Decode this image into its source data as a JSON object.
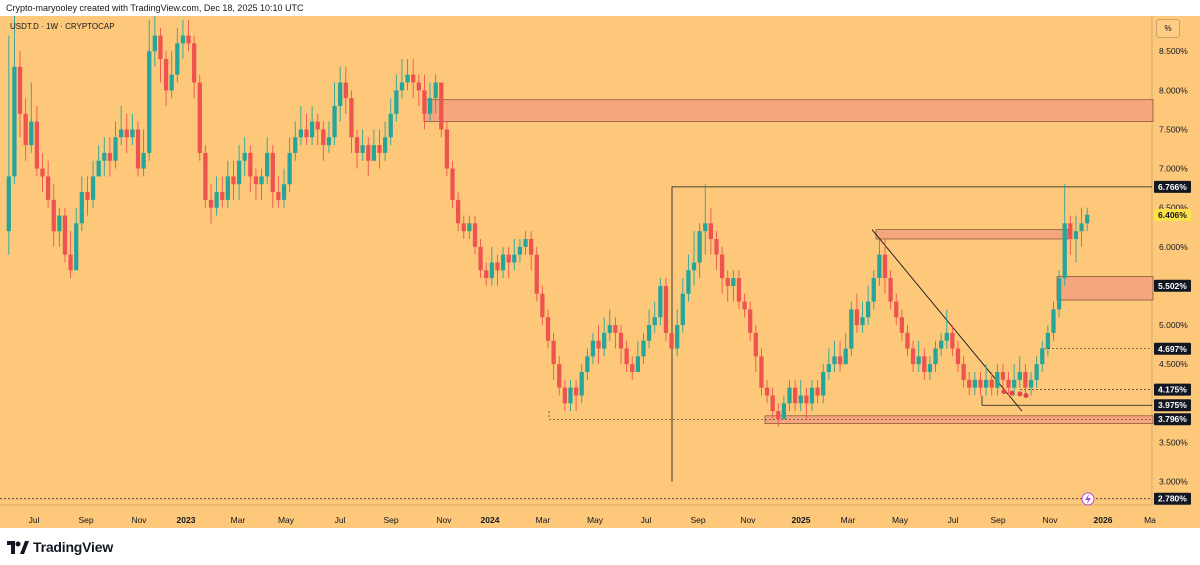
{
  "header": {
    "credit": "Crypto-maryooley created with TradingView.com, Dec 18, 2025 10:10 UTC"
  },
  "symbol_label": "USDT.D · 1W · CRYPTOCAP",
  "scale_button": "%",
  "footer": {
    "brand": "TradingView",
    "logo_icon": "tradingview-logo-icon"
  },
  "colors": {
    "background": "#fdc87a",
    "up": "#26a69a",
    "down": "#ef5350",
    "zone": "#f4a07e",
    "label_bg": "#131722"
  },
  "chart_data": {
    "type": "candlestick",
    "title": "",
    "symbol": "USDT.D",
    "interval": "1W",
    "ylim": [
      2.7,
      8.95
    ],
    "y_ticks": [
      {
        "value": 8.5,
        "label": "8.500%"
      },
      {
        "value": 8.0,
        "label": "8.000%"
      },
      {
        "value": 7.5,
        "label": "7.500%"
      },
      {
        "value": 7.0,
        "label": "7.000%"
      },
      {
        "value": 6.5,
        "label": "6.500%"
      },
      {
        "value": 6.0,
        "label": "6.000%"
      },
      {
        "value": 5.0,
        "label": "5.000%"
      },
      {
        "value": 4.5,
        "label": "4.500%"
      },
      {
        "value": 3.5,
        "label": "3.500%"
      },
      {
        "value": 3.0,
        "label": "3.000%"
      }
    ],
    "x_ticks": [
      "Jul",
      "Sep",
      "Nov",
      "2023",
      "Mar",
      "May",
      "Jul",
      "Sep",
      "Nov",
      "2024",
      "Mar",
      "May",
      "Jul",
      "Sep",
      "Nov",
      "2025",
      "Mar",
      "May",
      "Jul",
      "Sep",
      "Nov",
      "2026",
      "Ma"
    ],
    "price_labels": [
      {
        "value": 6.766,
        "label": "6.766%",
        "style": "dark"
      },
      {
        "value": 6.406,
        "label": "6.406%",
        "style": "current"
      },
      {
        "value": 5.502,
        "label": "5.502%",
        "style": "dark"
      },
      {
        "value": 4.697,
        "label": "4.697%",
        "style": "dark"
      },
      {
        "value": 4.175,
        "label": "4.175%",
        "style": "dark"
      },
      {
        "value": 3.975,
        "label": "3.975%",
        "style": "dark"
      },
      {
        "value": 3.796,
        "label": "3.796%",
        "style": "dark"
      },
      {
        "value": 2.78,
        "label": "2.780%",
        "style": "dark"
      }
    ],
    "zones": [
      {
        "from": 7.6,
        "to": 7.88,
        "start": "Oct 2023",
        "end": "right-edge"
      },
      {
        "from": 6.1,
        "to": 6.22,
        "start": "Apr 2025",
        "end": "Dec 2025"
      },
      {
        "from": 5.32,
        "to": 5.62,
        "start": "Nov 2025",
        "end": "right-edge"
      },
      {
        "from": 3.74,
        "to": 3.84,
        "start": "Dec 2024",
        "end": "right-edge"
      }
    ],
    "candles": [
      [
        6.2,
        6.9,
        8.7,
        5.9
      ],
      [
        6.9,
        8.3,
        9.0,
        6.8
      ],
      [
        8.3,
        7.7,
        8.5,
        7.4
      ],
      [
        7.7,
        7.3,
        7.9,
        7.1
      ],
      [
        7.3,
        7.6,
        8.1,
        7.2
      ],
      [
        7.6,
        7.0,
        7.8,
        6.9
      ],
      [
        7.0,
        6.9,
        7.2,
        6.7
      ],
      [
        6.9,
        6.6,
        7.1,
        6.5
      ],
      [
        6.6,
        6.2,
        6.8,
        6.0
      ],
      [
        6.2,
        6.4,
        6.5,
        6.0
      ],
      [
        6.4,
        5.9,
        6.5,
        5.8
      ],
      [
        5.9,
        5.7,
        6.2,
        5.6
      ],
      [
        5.7,
        6.3,
        6.5,
        5.7
      ],
      [
        6.3,
        6.7,
        6.9,
        6.2
      ],
      [
        6.7,
        6.6,
        6.9,
        6.4
      ],
      [
        6.6,
        6.9,
        7.1,
        6.5
      ],
      [
        6.9,
        7.1,
        7.3,
        6.9
      ],
      [
        7.1,
        7.2,
        7.4,
        6.9
      ],
      [
        7.2,
        7.1,
        7.4,
        6.9
      ],
      [
        7.1,
        7.4,
        7.6,
        7.0
      ],
      [
        7.4,
        7.5,
        7.8,
        7.3
      ],
      [
        7.5,
        7.4,
        7.7,
        7.2
      ],
      [
        7.4,
        7.5,
        7.7,
        7.3
      ],
      [
        7.5,
        7.0,
        7.6,
        6.9
      ],
      [
        7.0,
        7.2,
        7.5,
        6.9
      ],
      [
        7.2,
        8.5,
        8.9,
        7.1
      ],
      [
        8.5,
        8.7,
        9.1,
        8.3
      ],
      [
        8.7,
        8.4,
        8.8,
        8.1
      ],
      [
        8.4,
        8.0,
        8.5,
        7.8
      ],
      [
        8.0,
        8.2,
        8.5,
        7.9
      ],
      [
        8.2,
        8.6,
        8.8,
        8.1
      ],
      [
        8.6,
        8.7,
        8.9,
        8.4
      ],
      [
        8.7,
        8.6,
        8.9,
        8.5
      ],
      [
        8.6,
        8.1,
        8.7,
        7.9
      ],
      [
        8.1,
        7.2,
        8.2,
        7.1
      ],
      [
        7.2,
        6.6,
        7.3,
        6.5
      ],
      [
        6.6,
        6.5,
        6.8,
        6.3
      ],
      [
        6.5,
        6.7,
        6.9,
        6.4
      ],
      [
        6.7,
        6.6,
        6.9,
        6.5
      ],
      [
        6.6,
        6.9,
        7.1,
        6.5
      ],
      [
        6.9,
        6.8,
        7.1,
        6.6
      ],
      [
        6.8,
        7.1,
        7.3,
        6.6
      ],
      [
        7.1,
        7.2,
        7.4,
        6.9
      ],
      [
        7.2,
        6.9,
        7.3,
        6.7
      ],
      [
        6.9,
        6.8,
        7.0,
        6.6
      ],
      [
        6.8,
        6.9,
        7.0,
        6.6
      ],
      [
        6.9,
        7.2,
        7.4,
        6.8
      ],
      [
        7.2,
        6.7,
        7.3,
        6.5
      ],
      [
        6.7,
        6.6,
        6.9,
        6.5
      ],
      [
        6.6,
        6.8,
        7.0,
        6.5
      ],
      [
        6.8,
        7.2,
        7.4,
        6.7
      ],
      [
        7.2,
        7.4,
        7.6,
        7.1
      ],
      [
        7.4,
        7.5,
        7.8,
        7.3
      ],
      [
        7.5,
        7.4,
        7.7,
        7.3
      ],
      [
        7.4,
        7.6,
        7.8,
        7.3
      ],
      [
        7.6,
        7.5,
        7.7,
        7.3
      ],
      [
        7.5,
        7.3,
        7.6,
        7.1
      ],
      [
        7.3,
        7.4,
        7.6,
        7.2
      ],
      [
        7.4,
        7.8,
        8.1,
        7.3
      ],
      [
        7.8,
        8.1,
        8.3,
        7.6
      ],
      [
        8.1,
        7.9,
        8.3,
        7.7
      ],
      [
        7.9,
        7.4,
        8.0,
        7.2
      ],
      [
        7.4,
        7.2,
        7.5,
        7.0
      ],
      [
        7.2,
        7.3,
        7.5,
        7.1
      ],
      [
        7.3,
        7.1,
        7.4,
        6.9
      ],
      [
        7.1,
        7.3,
        7.5,
        7.1
      ],
      [
        7.3,
        7.2,
        7.5,
        7.0
      ],
      [
        7.2,
        7.4,
        7.6,
        7.1
      ],
      [
        7.4,
        7.7,
        7.9,
        7.3
      ],
      [
        7.7,
        8.0,
        8.2,
        7.6
      ],
      [
        8.0,
        8.1,
        8.4,
        7.9
      ],
      [
        8.1,
        8.2,
        8.4,
        8.0
      ],
      [
        8.2,
        8.1,
        8.4,
        7.9
      ],
      [
        8.1,
        8.0,
        8.2,
        7.8
      ],
      [
        8.0,
        7.7,
        8.2,
        7.5
      ],
      [
        7.7,
        7.9,
        8.1,
        7.6
      ],
      [
        7.9,
        8.1,
        8.2,
        7.7
      ],
      [
        8.1,
        7.5,
        8.1,
        7.4
      ],
      [
        7.5,
        7.0,
        7.6,
        6.9
      ],
      [
        7.0,
        6.6,
        7.1,
        6.5
      ],
      [
        6.6,
        6.3,
        6.7,
        6.2
      ],
      [
        6.3,
        6.2,
        6.4,
        6.1
      ],
      [
        6.2,
        6.3,
        6.4,
        6.1
      ],
      [
        6.3,
        6.0,
        6.4,
        5.9
      ],
      [
        6.0,
        5.7,
        6.1,
        5.6
      ],
      [
        5.7,
        5.6,
        5.8,
        5.5
      ],
      [
        5.6,
        5.8,
        6.0,
        5.5
      ],
      [
        5.8,
        5.7,
        5.9,
        5.5
      ],
      [
        5.7,
        5.9,
        6.0,
        5.6
      ],
      [
        5.9,
        5.8,
        6.0,
        5.6
      ],
      [
        5.8,
        5.9,
        6.1,
        5.7
      ],
      [
        5.9,
        6.0,
        6.1,
        5.8
      ],
      [
        6.0,
        6.1,
        6.2,
        5.9
      ],
      [
        6.1,
        5.9,
        6.2,
        5.7
      ],
      [
        5.9,
        5.4,
        6.0,
        5.3
      ],
      [
        5.4,
        5.1,
        5.5,
        5.0
      ],
      [
        5.1,
        4.8,
        5.2,
        4.7
      ],
      [
        4.8,
        4.5,
        4.9,
        4.3
      ],
      [
        4.5,
        4.2,
        4.6,
        4.1
      ],
      [
        4.2,
        4.0,
        4.3,
        3.9
      ],
      [
        4.0,
        4.2,
        4.3,
        3.9
      ],
      [
        4.2,
        4.1,
        4.3,
        3.9
      ],
      [
        4.1,
        4.4,
        4.5,
        4.0
      ],
      [
        4.4,
        4.6,
        4.7,
        4.3
      ],
      [
        4.6,
        4.8,
        4.9,
        4.5
      ],
      [
        4.8,
        4.7,
        5.0,
        4.5
      ],
      [
        4.7,
        4.9,
        5.1,
        4.6
      ],
      [
        4.9,
        5.0,
        5.2,
        4.8
      ],
      [
        5.0,
        4.9,
        5.1,
        4.7
      ],
      [
        4.9,
        4.7,
        5.0,
        4.5
      ],
      [
        4.7,
        4.5,
        4.8,
        4.4
      ],
      [
        4.5,
        4.4,
        4.6,
        4.3
      ],
      [
        4.4,
        4.6,
        4.8,
        4.4
      ],
      [
        4.6,
        4.8,
        4.9,
        4.5
      ],
      [
        4.8,
        5.0,
        5.2,
        4.7
      ],
      [
        5.0,
        5.1,
        5.3,
        4.9
      ],
      [
        5.1,
        5.5,
        5.6,
        5.0
      ],
      [
        5.5,
        4.9,
        5.6,
        4.8
      ],
      [
        4.9,
        4.7,
        5.0,
        4.6
      ],
      [
        4.7,
        5.0,
        5.2,
        4.6
      ],
      [
        5.0,
        5.4,
        5.6,
        4.9
      ],
      [
        5.4,
        5.7,
        5.9,
        5.3
      ],
      [
        5.7,
        5.8,
        6.2,
        5.5
      ],
      [
        5.8,
        6.2,
        6.3,
        5.6
      ],
      [
        6.2,
        6.3,
        6.8,
        5.9
      ],
      [
        6.3,
        6.1,
        6.5,
        5.9
      ],
      [
        6.1,
        5.9,
        6.2,
        5.7
      ],
      [
        5.9,
        5.6,
        6.0,
        5.4
      ],
      [
        5.6,
        5.5,
        5.7,
        5.3
      ],
      [
        5.5,
        5.6,
        5.7,
        5.3
      ],
      [
        5.6,
        5.3,
        5.7,
        5.2
      ],
      [
        5.3,
        5.2,
        5.4,
        5.1
      ],
      [
        5.2,
        4.9,
        5.3,
        4.8
      ],
      [
        4.9,
        4.6,
        5.0,
        4.4
      ],
      [
        4.6,
        4.2,
        4.7,
        4.1
      ],
      [
        4.2,
        4.1,
        4.3,
        4.0
      ],
      [
        4.1,
        3.9,
        4.2,
        3.8
      ],
      [
        3.9,
        3.8,
        4.0,
        3.7
      ],
      [
        3.8,
        4.0,
        4.1,
        3.8
      ],
      [
        4.0,
        4.2,
        4.3,
        3.9
      ],
      [
        4.2,
        4.0,
        4.3,
        3.9
      ],
      [
        4.0,
        4.1,
        4.3,
        3.9
      ],
      [
        4.1,
        4.0,
        4.2,
        3.8
      ],
      [
        4.0,
        4.2,
        4.3,
        3.9
      ],
      [
        4.2,
        4.1,
        4.3,
        4.0
      ],
      [
        4.1,
        4.4,
        4.5,
        4.0
      ],
      [
        4.4,
        4.5,
        4.7,
        4.3
      ],
      [
        4.5,
        4.6,
        4.8,
        4.4
      ],
      [
        4.6,
        4.5,
        4.8,
        4.4
      ],
      [
        4.5,
        4.7,
        4.9,
        4.5
      ],
      [
        4.7,
        5.2,
        5.3,
        4.6
      ],
      [
        5.2,
        5.0,
        5.4,
        4.9
      ],
      [
        5.0,
        5.1,
        5.3,
        4.9
      ],
      [
        5.1,
        5.3,
        5.5,
        5.0
      ],
      [
        5.3,
        5.6,
        5.7,
        5.2
      ],
      [
        5.6,
        5.9,
        6.1,
        5.5
      ],
      [
        5.9,
        5.6,
        6.1,
        5.4
      ],
      [
        5.6,
        5.3,
        5.7,
        5.2
      ],
      [
        5.3,
        5.1,
        5.4,
        5.0
      ],
      [
        5.1,
        4.9,
        5.2,
        4.8
      ],
      [
        4.9,
        4.7,
        5.0,
        4.6
      ],
      [
        4.7,
        4.5,
        4.8,
        4.4
      ],
      [
        4.5,
        4.6,
        4.8,
        4.4
      ],
      [
        4.6,
        4.4,
        4.7,
        4.3
      ],
      [
        4.4,
        4.5,
        4.6,
        4.3
      ],
      [
        4.5,
        4.7,
        4.8,
        4.4
      ],
      [
        4.7,
        4.8,
        4.9,
        4.6
      ],
      [
        4.8,
        4.9,
        5.2,
        4.7
      ],
      [
        4.9,
        4.7,
        5.0,
        4.6
      ],
      [
        4.7,
        4.5,
        4.8,
        4.4
      ],
      [
        4.5,
        4.3,
        4.6,
        4.2
      ],
      [
        4.3,
        4.2,
        4.4,
        4.1
      ],
      [
        4.2,
        4.3,
        4.4,
        4.1
      ],
      [
        4.3,
        4.2,
        4.4,
        4.1
      ],
      [
        4.2,
        4.3,
        4.5,
        4.1
      ],
      [
        4.3,
        4.2,
        4.4,
        4.1
      ],
      [
        4.2,
        4.4,
        4.5,
        4.1
      ],
      [
        4.4,
        4.3,
        4.5,
        4.2
      ],
      [
        4.3,
        4.2,
        4.4,
        4.1
      ],
      [
        4.2,
        4.3,
        4.5,
        4.1
      ],
      [
        4.3,
        4.4,
        4.6,
        4.2
      ],
      [
        4.4,
        4.2,
        4.5,
        4.1
      ],
      [
        4.2,
        4.3,
        4.4,
        4.1
      ],
      [
        4.3,
        4.5,
        4.6,
        4.2
      ],
      [
        4.5,
        4.7,
        4.8,
        4.4
      ],
      [
        4.7,
        4.9,
        5.0,
        4.6
      ],
      [
        4.9,
        5.2,
        5.3,
        4.8
      ],
      [
        5.2,
        5.6,
        5.7,
        5.1
      ],
      [
        5.6,
        6.3,
        6.8,
        5.5
      ],
      [
        6.3,
        6.1,
        6.4,
        5.9
      ],
      [
        6.1,
        6.2,
        6.4,
        5.8
      ],
      [
        6.2,
        6.3,
        6.5,
        6.0
      ],
      [
        6.3,
        6.41,
        6.5,
        6.2
      ]
    ]
  }
}
